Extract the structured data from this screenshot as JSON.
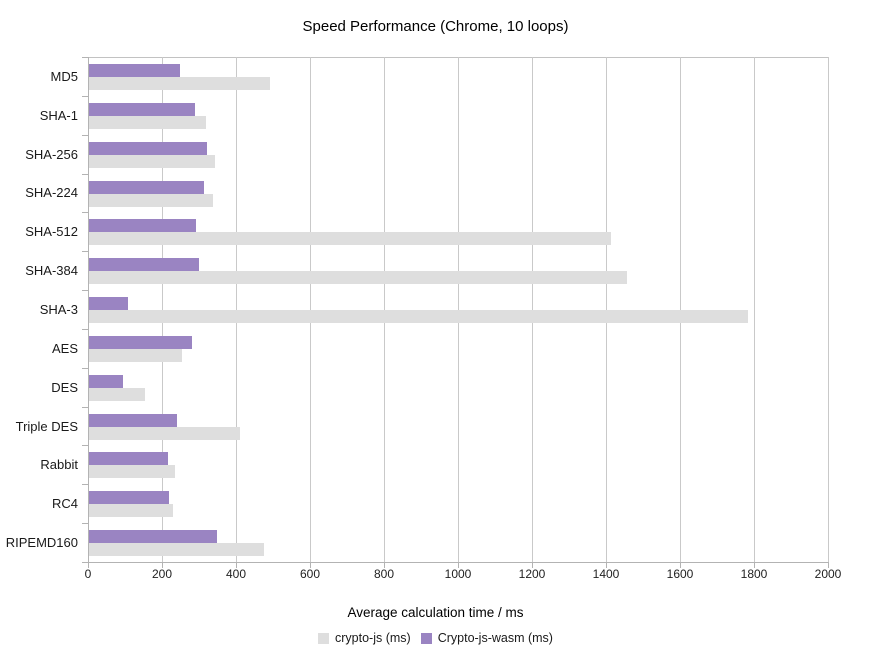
{
  "chart_data": {
    "type": "bar",
    "orientation": "horizontal",
    "title": "Speed Performance (Chrome, 10 loops)",
    "xlabel": "Average calculation time / ms",
    "ylabel": "",
    "xlim": [
      0,
      2000
    ],
    "x_ticks": [
      0,
      200,
      400,
      600,
      800,
      1000,
      1200,
      1400,
      1600,
      1800,
      2000
    ],
    "grid": "vertical",
    "legend_position": "bottom",
    "categories": [
      "MD5",
      "SHA-1",
      "SHA-256",
      "SHA-224",
      "SHA-512",
      "SHA-384",
      "SHA-3",
      "AES",
      "DES",
      "Triple DES",
      "Rabbit",
      "RC4",
      "RIPEMD160"
    ],
    "series": [
      {
        "name": "crypto-js (ms)",
        "color": "#dedede",
        "values": [
          490,
          315,
          340,
          335,
          1410,
          1455,
          1780,
          250,
          150,
          408,
          232,
          227,
          473
        ]
      },
      {
        "name": "Crypto-js-wasm (ms)",
        "color": "#9a84c2",
        "values": [
          245,
          286,
          319,
          311,
          289,
          297,
          105,
          278,
          93,
          238,
          213,
          216,
          346
        ]
      }
    ],
    "colors": {
      "gridline": "#c9c9c9",
      "axis": "#b3b3b3",
      "series_crypto_js": "#dedede",
      "series_crypto_js_wasm": "#9a84c2",
      "text": "#1a1a1a"
    }
  }
}
